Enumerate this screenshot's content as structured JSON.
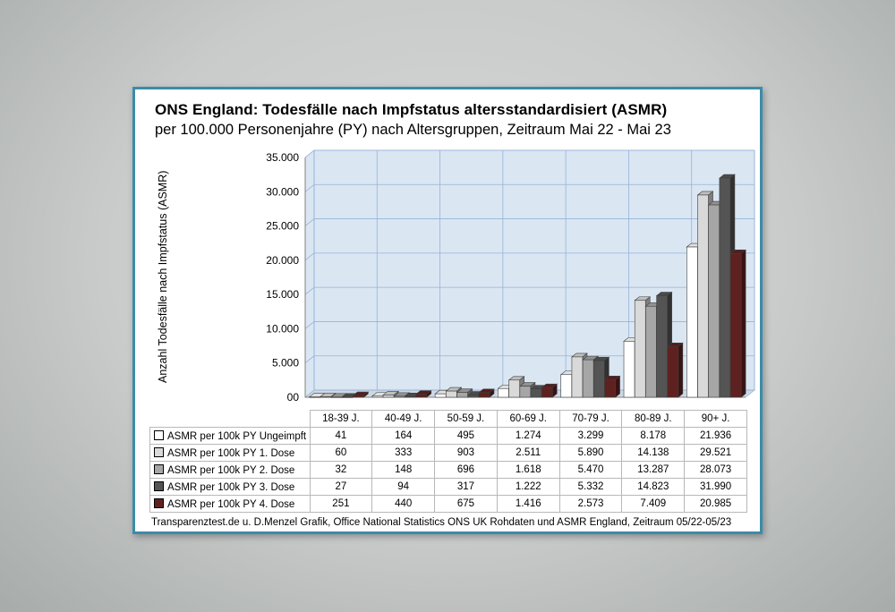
{
  "panel": {
    "title_bold": "ONS England: Todesfälle nach Impfstatus altersstandardisiert (ASMR)",
    "title_sub": "per 100.000 Personenjahre (PY) nach Altersgruppen, Zeitraum Mai 22 - Mai 23",
    "footer": "Transparenztest.de u. D.Menzel Grafik, Office National Statistics ONS UK Rohdaten und ASMR England, Zeitraum 05/22-05/23"
  },
  "chart_data": {
    "type": "bar",
    "title": "ONS England: Todesfälle nach Impfstatus altersstandardisiert (ASMR) per 100.000 Personenjahre (PY) nach Altersgruppen, Zeitraum Mai 22 - Mai 23",
    "xlabel": "",
    "ylabel": "Anzahl Todesfälle nach Impfstatus (ASMR)",
    "ylim": [
      0,
      35000
    ],
    "ytick_step": 5000,
    "ytick_labels": [
      "00",
      "5.000",
      "10.000",
      "15.000",
      "20.000",
      "25.000",
      "30.000",
      "35.000"
    ],
    "grid": true,
    "legend_position": "table-below",
    "plot_bg_color": "#dbe6f3",
    "grid_color": "#95b3d7",
    "categories": [
      "18-39 J.",
      "40-49 J.",
      "50-59 J.",
      "60-69 J.",
      "70-79 J.",
      "80-89 J.",
      "90+ J."
    ],
    "series": [
      {
        "name": "ASMR per 100k PY Ungeimpft",
        "color": "#ffffff",
        "values": [
          41,
          164,
          495,
          1274,
          3299,
          8178,
          21936
        ],
        "labels": [
          "41",
          "164",
          "495",
          "1.274",
          "3.299",
          "8.178",
          "21.936"
        ]
      },
      {
        "name": "ASMR per 100k PY 1. Dose",
        "color": "#d9d9d9",
        "values": [
          60,
          333,
          903,
          2511,
          5890,
          14138,
          29521
        ],
        "labels": [
          "60",
          "333",
          "903",
          "2.511",
          "5.890",
          "14.138",
          "29.521"
        ]
      },
      {
        "name": "ASMR per 100k PY 2. Dose",
        "color": "#a6a6a6",
        "values": [
          32,
          148,
          696,
          1618,
          5470,
          13287,
          28073
        ],
        "labels": [
          "32",
          "148",
          "696",
          "1.618",
          "5.470",
          "13.287",
          "28.073"
        ]
      },
      {
        "name": "ASMR per 100k PY 3. Dose",
        "color": "#545454",
        "values": [
          27,
          94,
          317,
          1222,
          5332,
          14823,
          31990
        ],
        "labels": [
          "27",
          "94",
          "317",
          "1.222",
          "5.332",
          "14.823",
          "31.990"
        ]
      },
      {
        "name": "ASMR per 100k PY 4. Dose",
        "color": "#5f2120",
        "values": [
          251,
          440,
          675,
          1416,
          2573,
          7409,
          20985
        ],
        "labels": [
          "251",
          "440",
          "675",
          "1.416",
          "2.573",
          "7.409",
          "20.985"
        ]
      }
    ]
  }
}
